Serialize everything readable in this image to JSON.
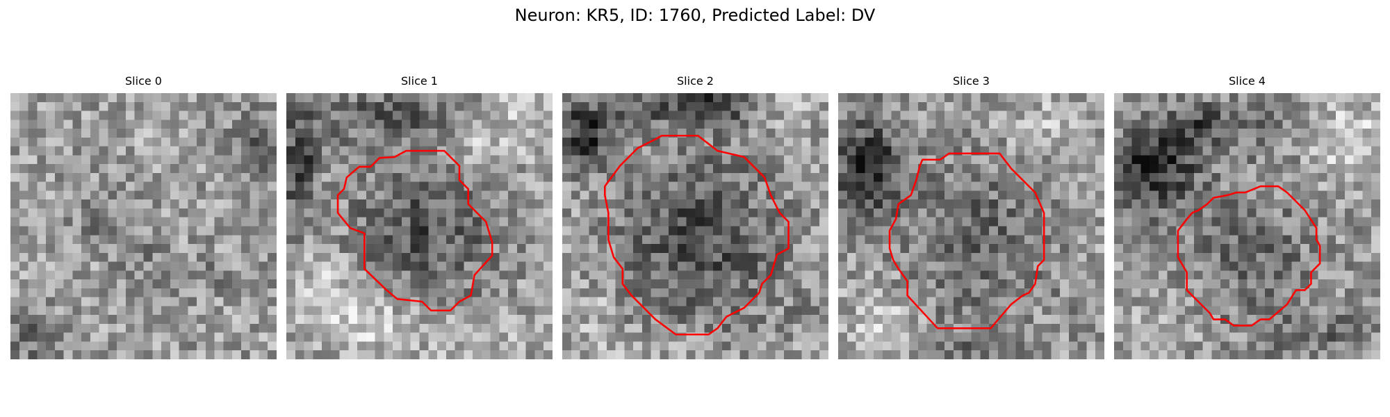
{
  "figure": {
    "title": "Neuron: KR5, ID: 1760, Predicted Label: DV"
  },
  "slices": [
    {
      "title": "Slice 0",
      "has_contour": false
    },
    {
      "title": "Slice 1",
      "has_contour": true
    },
    {
      "title": "Slice 2",
      "has_contour": true
    },
    {
      "title": "Slice 3",
      "has_contour": true
    },
    {
      "title": "Slice 4",
      "has_contour": true
    }
  ],
  "colors": {
    "contour": "#ff0000",
    "background": "#ffffff",
    "image_colormap": "grayscale"
  }
}
